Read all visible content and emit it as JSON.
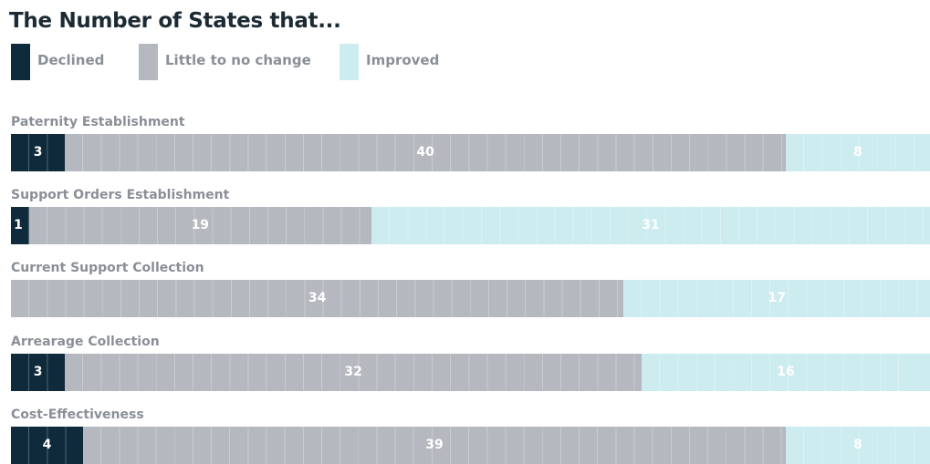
{
  "title": "The Number of States that...",
  "legend": [
    {
      "label": "Declined",
      "color": "#0f2a3a"
    },
    {
      "label": "Little to no change",
      "color": "#b5b8bf"
    },
    {
      "label": "Improved",
      "color": "#cdecf0"
    }
  ],
  "chart_data": {
    "type": "bar",
    "orientation": "horizontal",
    "stacked": true,
    "categories": [
      "Paternity Establishment",
      "Support Orders Establishment",
      "Current Support Collection",
      "Arrearage Collection",
      "Cost-Effectiveness"
    ],
    "series": [
      {
        "name": "Declined",
        "color": "#0f2a3a",
        "values": [
          3,
          1,
          0,
          3,
          4
        ]
      },
      {
        "name": "Little to no change",
        "color": "#b5b8bf",
        "values": [
          40,
          19,
          34,
          32,
          39
        ]
      },
      {
        "name": "Improved",
        "color": "#cdecf0",
        "values": [
          8,
          31,
          17,
          16,
          8
        ]
      }
    ],
    "xlim": [
      0,
      51
    ],
    "grid": true,
    "legend_position": "top-left"
  }
}
